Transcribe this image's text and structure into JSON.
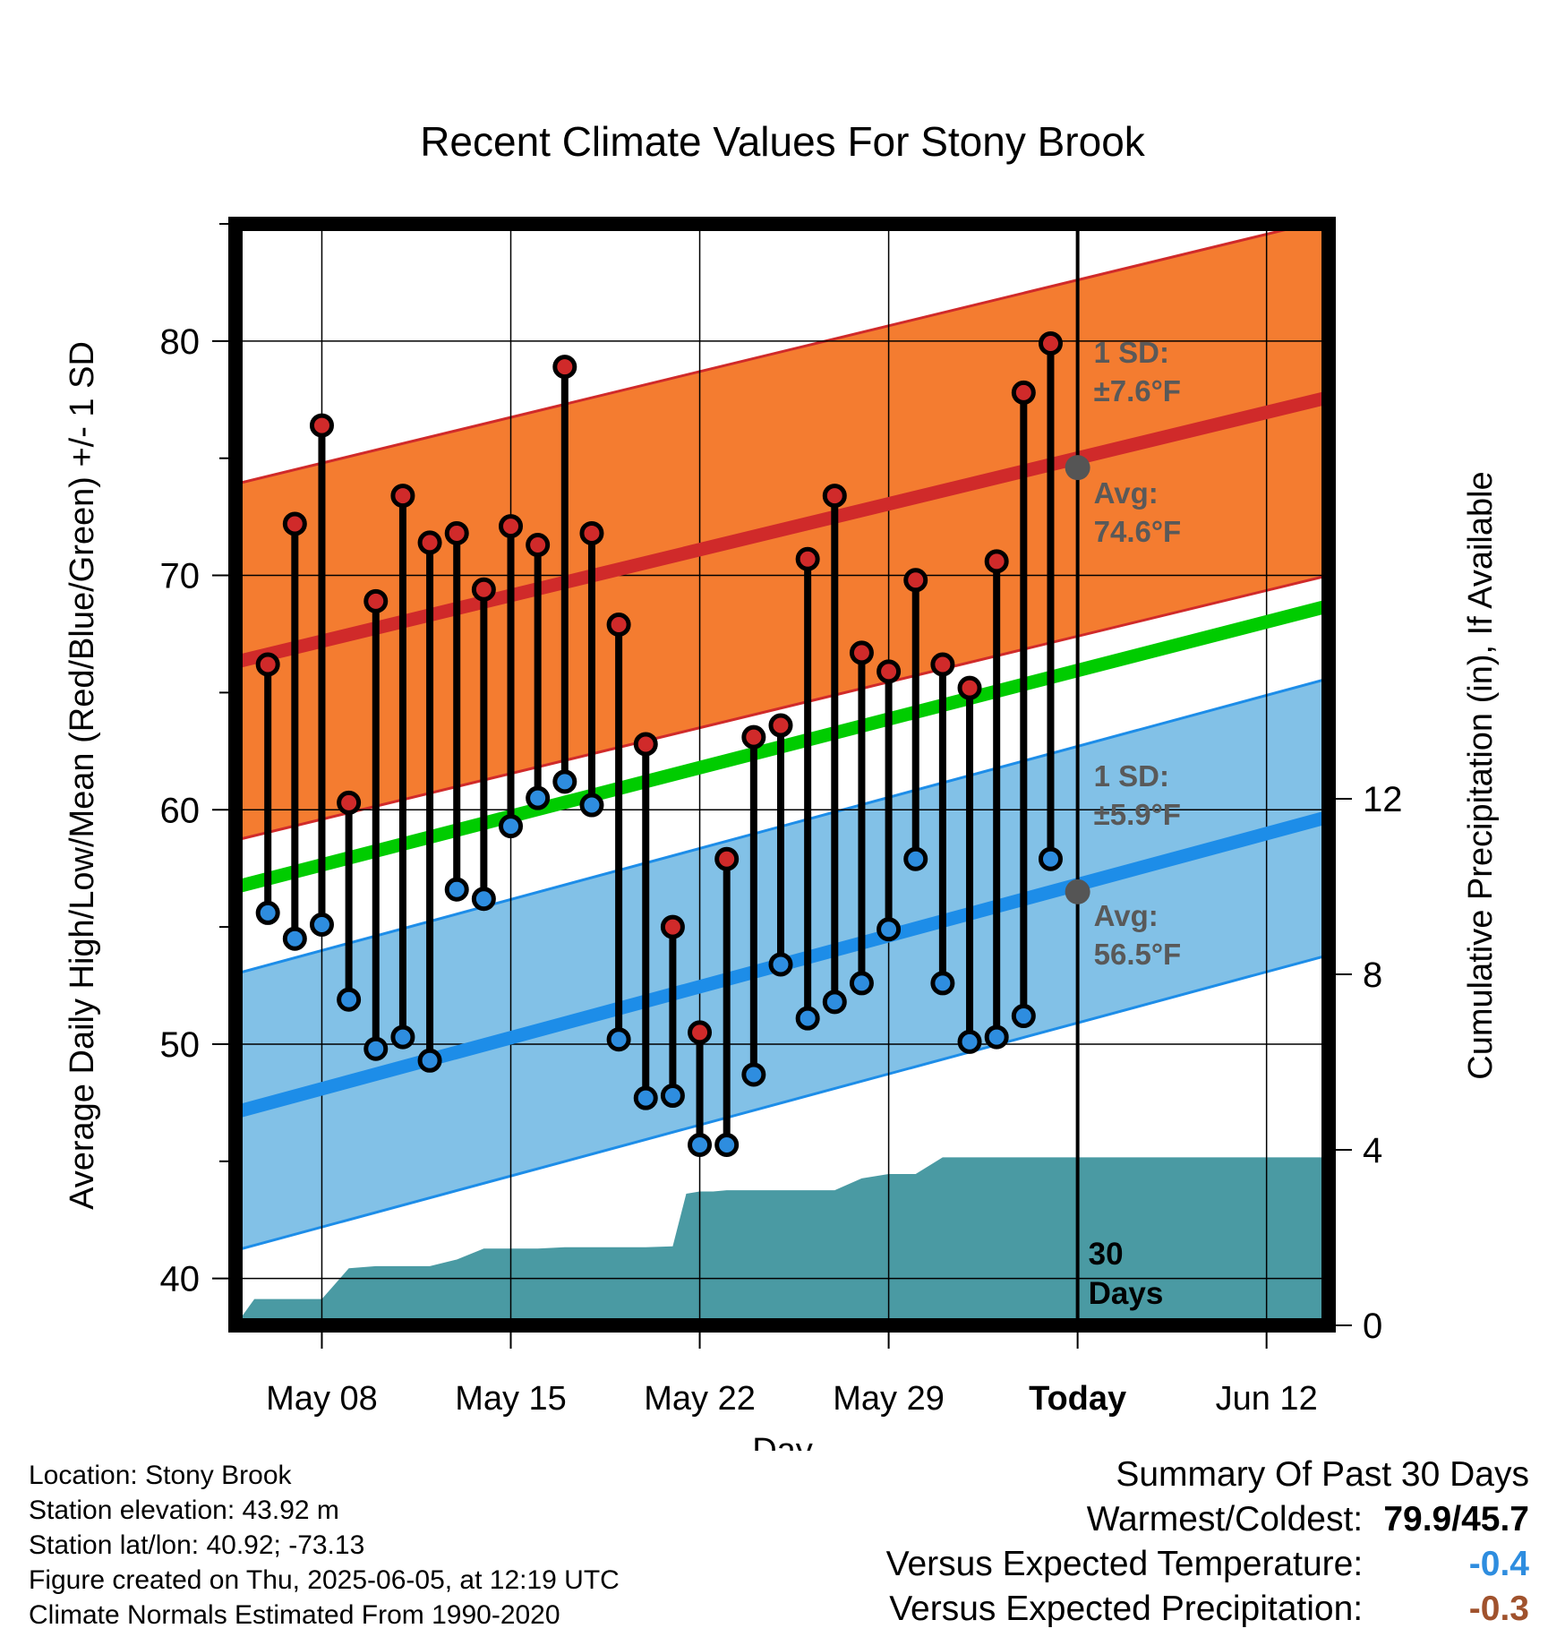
{
  "chart_data": {
    "type": "line",
    "title": "Recent Climate Values For Stony Brook",
    "xlabel": "Day",
    "ylabel": "Average Daily High/Low/Mean (Red/Blue/Green) +/- 1 SD",
    "y2label": "Cumulative Precipitation (in), If Available",
    "ylim": [
      38,
      85
    ],
    "y2lim": [
      0,
      24
    ],
    "yticks": [
      40,
      50,
      60,
      70,
      80
    ],
    "y2ticks": [
      0,
      4,
      8,
      12
    ],
    "x_tick_labels": [
      "May 08",
      "May 15",
      "May 22",
      "May 29",
      "Today",
      "Jun 12"
    ],
    "x_tick_days": [
      8,
      15,
      22,
      29,
      36,
      43
    ],
    "xlim": [
      4.8,
      45.3
    ],
    "today_day": 36,
    "daily_days": [
      6,
      7,
      8,
      9,
      10,
      11,
      12,
      13,
      14,
      15,
      16,
      17,
      18,
      19,
      20,
      21,
      22,
      23,
      24,
      25,
      26,
      27,
      28,
      29,
      30,
      31,
      32,
      33,
      34,
      35
    ],
    "daily_high": [
      66.2,
      72.2,
      76.4,
      60.3,
      68.9,
      73.4,
      71.4,
      71.8,
      69.4,
      72.1,
      71.3,
      78.9,
      71.8,
      67.9,
      62.8,
      55.0,
      50.5,
      57.9,
      63.1,
      63.6,
      70.7,
      73.4,
      66.7,
      65.9,
      69.8,
      66.2,
      65.2,
      70.6,
      77.8,
      79.9
    ],
    "daily_low": [
      55.6,
      54.5,
      55.1,
      51.9,
      49.8,
      50.3,
      49.3,
      56.6,
      56.2,
      59.3,
      60.5,
      61.2,
      60.2,
      50.2,
      47.7,
      47.8,
      45.7,
      45.7,
      48.7,
      53.4,
      51.1,
      51.8,
      52.6,
      54.9,
      57.9,
      52.6,
      50.1,
      50.3,
      51.2,
      57.9
    ],
    "normal_high": {
      "start": 66.3,
      "end": 77.6,
      "sd": 7.6
    },
    "normal_low": {
      "start": 47.1,
      "end": 59.7,
      "sd": 5.9
    },
    "normal_mean": {
      "start": 56.7,
      "end": 68.7
    },
    "precip_cumulative": {
      "days": [
        4.8,
        5.5,
        6.5,
        7.5,
        8,
        9,
        10,
        11,
        12,
        13,
        14,
        15,
        16,
        17,
        18,
        19,
        20,
        21,
        21.5,
        22,
        22.5,
        23,
        24,
        25,
        26,
        27,
        28,
        29,
        30,
        31,
        32,
        33,
        34,
        35,
        36,
        45.3
      ],
      "values": [
        0,
        0.6,
        0.6,
        0.6,
        0.6,
        1.3,
        1.35,
        1.35,
        1.35,
        1.5,
        1.75,
        1.75,
        1.75,
        1.78,
        1.78,
        1.78,
        1.78,
        1.8,
        3.0,
        3.05,
        3.05,
        3.08,
        3.08,
        3.08,
        3.08,
        3.08,
        3.35,
        3.45,
        3.45,
        3.83,
        3.83,
        3.83,
        3.83,
        3.83,
        3.83,
        3.83
      ]
    },
    "annotations": {
      "high_sd_label": "1 SD:",
      "high_sd_value": "±7.6°F",
      "high_avg_label": "Avg:",
      "high_avg_value": "74.6°F",
      "high_avg_point": 74.6,
      "low_sd_label": "1 SD:",
      "low_sd_value": "±5.9°F",
      "low_avg_label": "Avg:",
      "low_avg_value": "56.5°F",
      "low_avg_point": 56.5,
      "window_label_1": "30",
      "window_label_2": "Days"
    },
    "colors": {
      "high_band": "#f47c30",
      "high_line": "#d02a2a",
      "low_band": "#82c1e7",
      "low_line": "#1d8de8",
      "mean_line": "#00cc00",
      "precip": "#4a9aa3",
      "high_dot": "#d02a2a",
      "low_dot": "#2e8ddf",
      "annotation_text": "#595959"
    },
    "grid": true
  },
  "info": {
    "location": "Location: Stony Brook",
    "elevation": "Station elevation: 43.92 m",
    "latlon": "Station lat/lon: 40.92; -73.13",
    "created": "Figure created on Thu, 2025-06-05, at 12:19 UTC",
    "normals": "Climate Normals Estimated From 1990-2020"
  },
  "summary": {
    "title": "Summary Of Past 30 Days",
    "warm_cold_label": "Warmest/Coldest:",
    "warm_cold_value": "79.9/45.7",
    "temp_label": "Versus Expected Temperature:",
    "temp_value": "-0.4",
    "temp_color": "#2e8ddf",
    "precip_label": "Versus Expected Precipitation:",
    "precip_value": "-0.3",
    "precip_color": "#a0522d"
  }
}
